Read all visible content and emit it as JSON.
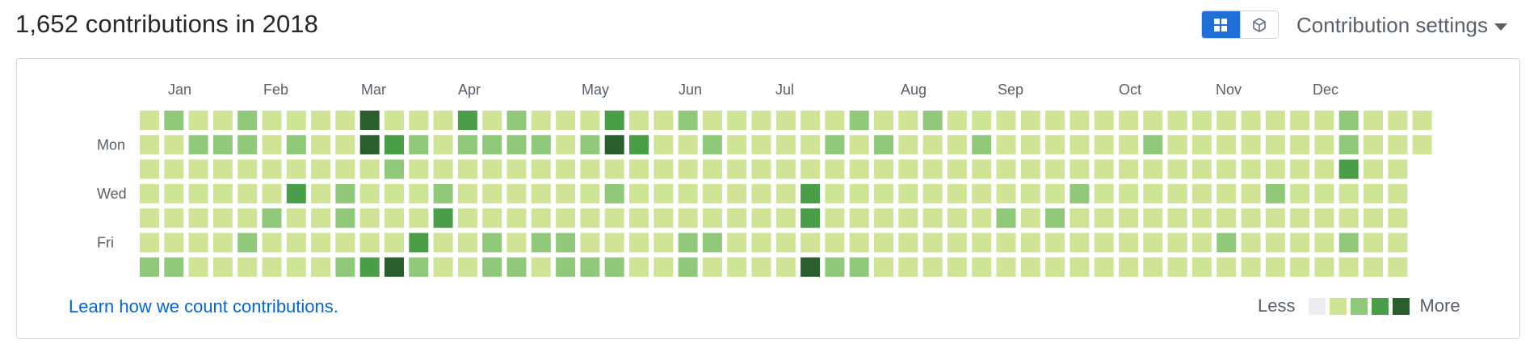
{
  "header": {
    "title": "1,652 contributions in 2018",
    "settings_label": "Contribution settings",
    "view_toggle": [
      {
        "icon": "grid-icon",
        "active": true
      },
      {
        "icon": "cube-icon",
        "active": false
      }
    ]
  },
  "graph": {
    "months": [
      "Jan",
      "Feb",
      "Mar",
      "Apr",
      "May",
      "Jun",
      "Jul",
      "Aug",
      "Sep",
      "Oct",
      "Nov",
      "Dec"
    ],
    "weekday_labels": [
      "",
      "Mon",
      "",
      "Wed",
      "",
      "Fri",
      ""
    ],
    "palette": [
      "#ebedf0",
      "#cfe495",
      "#90c97a",
      "#4a9e47",
      "#2a5e2c"
    ],
    "week_count": 53,
    "overrides": [
      [
        1,
        0,
        2
      ],
      [
        4,
        0,
        2
      ],
      [
        9,
        0,
        4
      ],
      [
        13,
        0,
        3
      ],
      [
        15,
        0,
        2
      ],
      [
        19,
        0,
        3
      ],
      [
        22,
        0,
        2
      ],
      [
        29,
        0,
        2
      ],
      [
        32,
        0,
        2
      ],
      [
        49,
        0,
        2
      ],
      [
        2,
        1,
        2
      ],
      [
        3,
        1,
        2
      ],
      [
        4,
        1,
        2
      ],
      [
        6,
        1,
        2
      ],
      [
        9,
        1,
        4
      ],
      [
        10,
        1,
        3
      ],
      [
        11,
        1,
        2
      ],
      [
        13,
        1,
        2
      ],
      [
        14,
        1,
        2
      ],
      [
        15,
        1,
        2
      ],
      [
        16,
        1,
        2
      ],
      [
        18,
        1,
        2
      ],
      [
        19,
        1,
        4
      ],
      [
        20,
        1,
        3
      ],
      [
        23,
        1,
        2
      ],
      [
        28,
        1,
        2
      ],
      [
        30,
        1,
        2
      ],
      [
        34,
        1,
        2
      ],
      [
        41,
        1,
        2
      ],
      [
        49,
        1,
        2
      ],
      [
        10,
        2,
        2
      ],
      [
        49,
        2,
        3
      ],
      [
        6,
        3,
        3
      ],
      [
        8,
        3,
        2
      ],
      [
        12,
        3,
        2
      ],
      [
        19,
        3,
        2
      ],
      [
        27,
        3,
        3
      ],
      [
        38,
        3,
        2
      ],
      [
        46,
        3,
        2
      ],
      [
        5,
        4,
        2
      ],
      [
        8,
        4,
        2
      ],
      [
        12,
        4,
        3
      ],
      [
        27,
        4,
        3
      ],
      [
        35,
        4,
        2
      ],
      [
        37,
        4,
        2
      ],
      [
        4,
        5,
        2
      ],
      [
        11,
        5,
        3
      ],
      [
        14,
        5,
        2
      ],
      [
        16,
        5,
        2
      ],
      [
        17,
        5,
        2
      ],
      [
        22,
        5,
        2
      ],
      [
        23,
        5,
        2
      ],
      [
        44,
        5,
        2
      ],
      [
        49,
        5,
        2
      ],
      [
        0,
        6,
        2
      ],
      [
        1,
        6,
        2
      ],
      [
        8,
        6,
        2
      ],
      [
        9,
        6,
        3
      ],
      [
        10,
        6,
        4
      ],
      [
        11,
        6,
        2
      ],
      [
        14,
        6,
        2
      ],
      [
        15,
        6,
        2
      ],
      [
        17,
        6,
        2
      ],
      [
        18,
        6,
        2
      ],
      [
        19,
        6,
        2
      ],
      [
        22,
        6,
        2
      ],
      [
        27,
        6,
        4
      ],
      [
        28,
        6,
        2
      ],
      [
        29,
        6,
        2
      ]
    ]
  },
  "footer": {
    "learn_link": "Learn how we count contributions.",
    "legend_less": "Less",
    "legend_more": "More"
  }
}
